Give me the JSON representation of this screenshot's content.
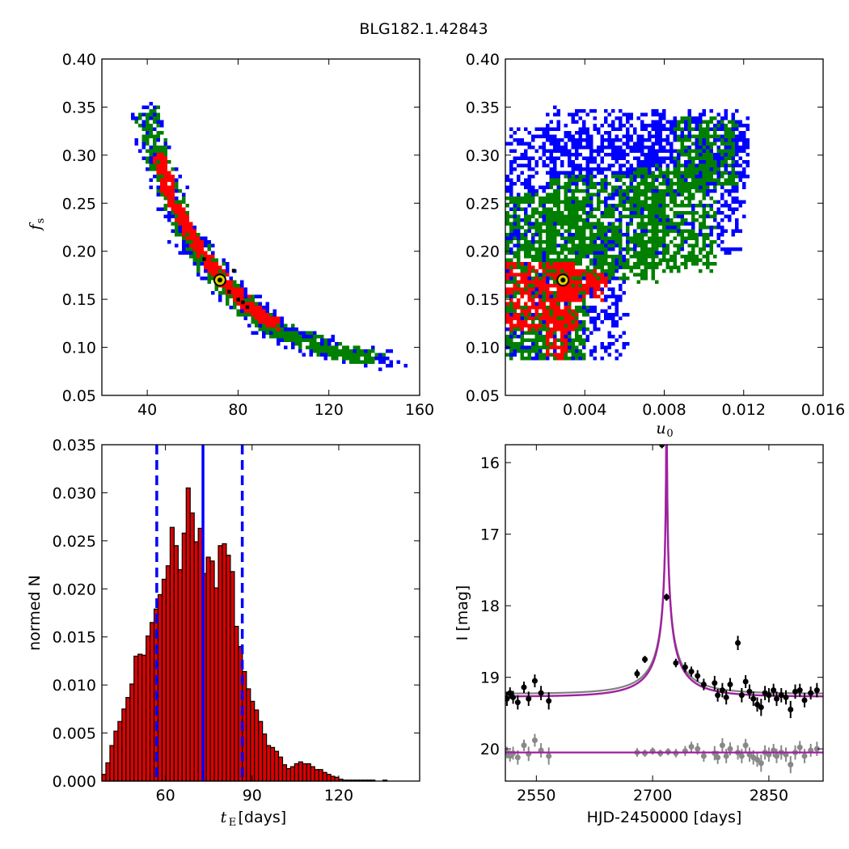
{
  "figure_title": "BLG182.1.42843",
  "colors": {
    "c1": "#ff0000",
    "c2": "#007f00",
    "c3": "#0000ff",
    "best": "#000000",
    "marker_fill": "#ddd000",
    "bar": "#dd0000",
    "model": "#a020a0",
    "model_alt": "#808080",
    "data_main": "#000000",
    "data_resid": "#888888"
  },
  "chart_data": [
    {
      "id": "tE_fs",
      "type": "scatter",
      "xlim": [
        20,
        160
      ],
      "ylim": [
        0.05,
        0.4
      ],
      "xticks": [
        40,
        80,
        120,
        160
      ],
      "xtick_labels": [
        "40",
        "80",
        "120",
        "160"
      ],
      "yticks": [
        0.05,
        0.1,
        0.15,
        0.2,
        0.25,
        0.3,
        0.35,
        0.4
      ],
      "ytick_labels": [
        "0.05",
        "0.10",
        "0.15",
        "0.20",
        "0.25",
        "0.30",
        "0.35",
        "0.40"
      ],
      "ylabel_math": "f",
      "ylabel_sub": "s",
      "xlabel": "",
      "best_fit": {
        "x": 72,
        "y": 0.17
      },
      "black_points": [
        [
          65,
          0.192
        ],
        [
          76,
          0.158
        ],
        [
          80,
          0.15
        ],
        [
          82,
          0.147
        ],
        [
          84,
          0.142
        ],
        [
          78,
          0.18
        ]
      ],
      "confidence_regions": [
        {
          "level": "3sigma",
          "color_key": "c3",
          "ridge": [
            [
              38,
              0.35
            ],
            [
              45,
              0.29
            ],
            [
              55,
              0.225
            ],
            [
              65,
              0.19
            ],
            [
              80,
              0.15
            ],
            [
              90,
              0.13
            ],
            [
              100,
              0.115
            ],
            [
              120,
              0.1
            ],
            [
              148,
              0.087
            ]
          ],
          "width_dx": 7,
          "width_dy": 0.01
        },
        {
          "level": "2sigma",
          "color_key": "c2",
          "ridge": [
            [
              39,
              0.345
            ],
            [
              45,
              0.29
            ],
            [
              55,
              0.225
            ],
            [
              65,
              0.19
            ],
            [
              80,
              0.15
            ],
            [
              90,
              0.13
            ],
            [
              100,
              0.115
            ],
            [
              120,
              0.1
            ],
            [
              140,
              0.09
            ]
          ],
          "width_dx": 5,
          "width_dy": 0.007
        },
        {
          "level": "1sigma",
          "color_key": "c1",
          "ridge": [
            [
              44,
              0.3
            ],
            [
              50,
              0.255
            ],
            [
              58,
              0.22
            ],
            [
              66,
              0.19
            ],
            [
              76,
              0.162
            ],
            [
              86,
              0.14
            ],
            [
              96,
              0.125
            ]
          ],
          "width_dx": 2.5,
          "width_dy": 0.004
        }
      ]
    },
    {
      "id": "u0_fs",
      "type": "scatter",
      "xlim": [
        0.0,
        0.016
      ],
      "ylim": [
        0.05,
        0.4
      ],
      "xticks": [
        0.004,
        0.008,
        0.012,
        0.016
      ],
      "xtick_labels": [
        "0.004",
        "0.008",
        "0.012",
        "0.016"
      ],
      "yticks": [
        0.05,
        0.1,
        0.15,
        0.2,
        0.25,
        0.3,
        0.35,
        0.4
      ],
      "ytick_labels": [
        "0.05",
        "0.10",
        "0.15",
        "0.20",
        "0.25",
        "0.30",
        "0.35",
        "0.40"
      ],
      "xlabel_math": "u",
      "xlabel_sub": "0",
      "ylabel": "",
      "best_fit": {
        "x": 0.0029,
        "y": 0.17
      },
      "confidence_regions": [
        {
          "level": "3sigma",
          "color_key": "c3",
          "blobs": [
            [
              0.0,
              0.006,
              0.09,
              0.33
            ],
            [
              0.002,
              0.008,
              0.28,
              0.35
            ],
            [
              0.006,
              0.012,
              0.2,
              0.34
            ],
            [
              0.009,
              0.0122,
              0.28,
              0.35
            ]
          ]
        },
        {
          "level": "2sigma",
          "color_key": "c2",
          "blobs": [
            [
              0.0,
              0.004,
              0.09,
              0.26
            ],
            [
              0.002,
              0.0075,
              0.17,
              0.28
            ],
            [
              0.0065,
              0.0105,
              0.18,
              0.29
            ],
            [
              0.0085,
              0.0115,
              0.27,
              0.34
            ]
          ]
        },
        {
          "level": "1sigma",
          "color_key": "c1",
          "blobs": [
            [
              0.0,
              0.0035,
              0.12,
              0.19
            ],
            [
              0.0025,
              0.005,
              0.15,
              0.18
            ],
            [
              0.002,
              0.003,
              0.09,
              0.12
            ]
          ]
        }
      ]
    },
    {
      "id": "tE_hist",
      "type": "bar",
      "xlim": [
        38,
        148
      ],
      "ylim": [
        0,
        0.035
      ],
      "xticks": [
        60,
        90,
        120
      ],
      "xtick_labels": [
        "60",
        "90",
        "120"
      ],
      "yticks": [
        0,
        0.005,
        0.01,
        0.015,
        0.02,
        0.025,
        0.03,
        0.035
      ],
      "ytick_labels": [
        "0.000",
        "0.005",
        "0.010",
        "0.015",
        "0.020",
        "0.025",
        "0.030",
        "0.035"
      ],
      "ylabel": "normed N",
      "xlabel_math": "t",
      "xlabel_sub": "E",
      "xlabel_suffix": " [days]",
      "bin_start": 38,
      "bin_width": 1.39,
      "values": [
        0.0007,
        0.0019,
        0.0037,
        0.0052,
        0.0062,
        0.0075,
        0.0087,
        0.0101,
        0.013,
        0.0132,
        0.0131,
        0.0151,
        0.0165,
        0.0179,
        0.0194,
        0.021,
        0.0224,
        0.0264,
        0.0245,
        0.022,
        0.0258,
        0.0305,
        0.0279,
        0.0249,
        0.0263,
        0.0216,
        0.0233,
        0.0229,
        0.0201,
        0.0245,
        0.0247,
        0.0235,
        0.0218,
        0.0161,
        0.014,
        0.0114,
        0.0096,
        0.0083,
        0.0074,
        0.0062,
        0.0049,
        0.0037,
        0.0035,
        0.0031,
        0.0025,
        0.0017,
        0.0013,
        0.0015,
        0.0018,
        0.002,
        0.0018,
        0.0018,
        0.0015,
        0.0012,
        0.0012,
        0.0009,
        0.0007,
        0.0005,
        0.0004,
        0.0002,
        0.0001,
        0.0001,
        0.0001,
        0.0001,
        0.0001,
        0.0001,
        0.0001,
        0.0001,
        0.0,
        0.0,
        0.0001,
        0.0,
        0.0,
        0.0,
        0.0,
        0.0,
        0.0,
        0.0,
        0.0
      ],
      "median": 73,
      "lower": 57,
      "upper": 86.6
    },
    {
      "id": "lightcurve",
      "type": "line",
      "xlim": [
        2510,
        2920
      ],
      "ylim": [
        20.45,
        15.75
      ],
      "xticks": [
        2550,
        2700,
        2850
      ],
      "xtick_labels": [
        "2550",
        "2700",
        "2850"
      ],
      "yticks": [
        16,
        17,
        18,
        19,
        20
      ],
      "ytick_labels": [
        "16",
        "17",
        "18",
        "19",
        "20"
      ],
      "xlabel": "HJD-2450000 [days]",
      "ylabel": "I [mag]",
      "model": {
        "t0": 2718,
        "tE": 72,
        "u0": 0.0029,
        "fs": 0.17,
        "base": 19.27
      },
      "resid_base": 20.05,
      "data_points": [
        [
          2512,
          19.3,
          0.1
        ],
        [
          2516,
          19.22,
          0.08
        ],
        [
          2520,
          19.28,
          0.09
        ],
        [
          2526,
          19.35,
          0.1
        ],
        [
          2534,
          19.14,
          0.08
        ],
        [
          2540,
          19.3,
          0.1
        ],
        [
          2548,
          19.05,
          0.09
        ],
        [
          2556,
          19.22,
          0.1
        ],
        [
          2566,
          19.33,
          0.12
        ],
        [
          2680,
          18.95,
          0.06
        ],
        [
          2690,
          18.75,
          0.05
        ],
        [
          2712,
          15.75,
          0.05
        ],
        [
          2718,
          17.88,
          0.05
        ],
        [
          2730,
          18.8,
          0.06
        ],
        [
          2742,
          18.86,
          0.07
        ],
        [
          2750,
          18.92,
          0.07
        ],
        [
          2758,
          18.98,
          0.08
        ],
        [
          2766,
          19.1,
          0.08
        ],
        [
          2780,
          19.08,
          0.1
        ],
        [
          2784,
          19.25,
          0.09
        ],
        [
          2790,
          19.18,
          0.1
        ],
        [
          2795,
          19.28,
          0.1
        ],
        [
          2800,
          19.1,
          0.09
        ],
        [
          2810,
          18.52,
          0.1
        ],
        [
          2815,
          19.25,
          0.1
        ],
        [
          2820,
          19.06,
          0.09
        ],
        [
          2825,
          19.2,
          0.1
        ],
        [
          2830,
          19.3,
          0.1
        ],
        [
          2835,
          19.38,
          0.1
        ],
        [
          2840,
          19.42,
          0.12
        ],
        [
          2845,
          19.22,
          0.1
        ],
        [
          2850,
          19.25,
          0.1
        ],
        [
          2856,
          19.18,
          0.09
        ],
        [
          2860,
          19.3,
          0.1
        ],
        [
          2866,
          19.25,
          0.1
        ],
        [
          2872,
          19.28,
          0.1
        ],
        [
          2878,
          19.45,
          0.12
        ],
        [
          2884,
          19.2,
          0.1
        ],
        [
          2890,
          19.18,
          0.09
        ],
        [
          2896,
          19.32,
          0.1
        ],
        [
          2904,
          19.22,
          0.09
        ],
        [
          2912,
          19.18,
          0.1
        ]
      ],
      "resid_points": [
        [
          2512,
          20.05,
          0.08
        ],
        [
          2516,
          20.1,
          0.08
        ],
        [
          2520,
          20.06,
          0.09
        ],
        [
          2526,
          20.12,
          0.1
        ],
        [
          2534,
          19.95,
          0.08
        ],
        [
          2540,
          20.07,
          0.1
        ],
        [
          2548,
          19.88,
          0.09
        ],
        [
          2556,
          20.02,
          0.1
        ],
        [
          2566,
          20.1,
          0.12
        ],
        [
          2680,
          20.05,
          0.06
        ],
        [
          2690,
          20.06,
          0.05
        ],
        [
          2700,
          20.03,
          0.05
        ],
        [
          2710,
          20.06,
          0.05
        ],
        [
          2720,
          20.04,
          0.05
        ],
        [
          2730,
          20.06,
          0.06
        ],
        [
          2742,
          20.03,
          0.07
        ],
        [
          2750,
          19.97,
          0.07
        ],
        [
          2758,
          20.0,
          0.08
        ],
        [
          2766,
          20.1,
          0.08
        ],
        [
          2780,
          20.06,
          0.1
        ],
        [
          2784,
          20.12,
          0.09
        ],
        [
          2790,
          19.95,
          0.1
        ],
        [
          2795,
          20.1,
          0.1
        ],
        [
          2800,
          20.0,
          0.09
        ],
        [
          2810,
          20.05,
          0.1
        ],
        [
          2815,
          20.1,
          0.1
        ],
        [
          2820,
          19.95,
          0.09
        ],
        [
          2825,
          20.08,
          0.1
        ],
        [
          2830,
          20.12,
          0.1
        ],
        [
          2835,
          20.15,
          0.1
        ],
        [
          2840,
          20.2,
          0.12
        ],
        [
          2845,
          20.05,
          0.1
        ],
        [
          2850,
          20.08,
          0.1
        ],
        [
          2856,
          20.02,
          0.09
        ],
        [
          2860,
          20.1,
          0.1
        ],
        [
          2866,
          20.05,
          0.1
        ],
        [
          2872,
          20.08,
          0.1
        ],
        [
          2878,
          20.22,
          0.12
        ],
        [
          2884,
          20.05,
          0.1
        ],
        [
          2890,
          19.98,
          0.09
        ],
        [
          2896,
          20.1,
          0.1
        ],
        [
          2904,
          20.02,
          0.09
        ],
        [
          2912,
          20.0,
          0.1
        ]
      ]
    }
  ]
}
